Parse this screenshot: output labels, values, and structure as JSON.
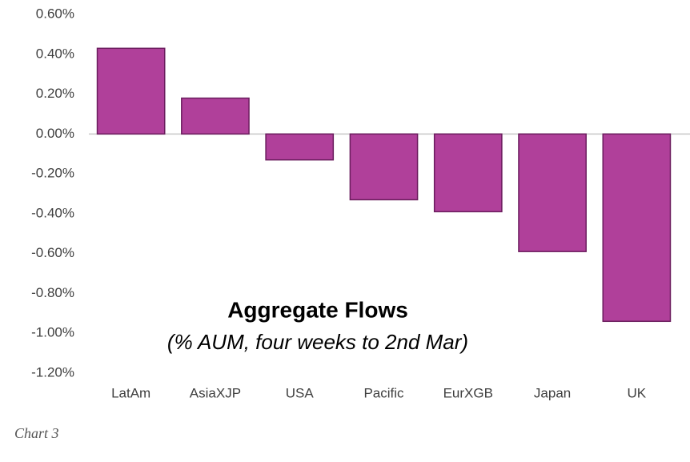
{
  "chart_data": {
    "type": "bar",
    "title": "Aggregate Flows",
    "subtitle": "(% AUM, four weeks to 2nd Mar)",
    "caption": "Chart 3",
    "categories": [
      "LatAm",
      "AsiaXJP",
      "USA",
      "Pacific",
      "EurXGB",
      "Japan",
      "UK"
    ],
    "values": [
      0.43,
      0.18,
      -0.13,
      -0.33,
      -0.39,
      -0.59,
      -0.94
    ],
    "color": "#b0409a",
    "ylim": [
      -1.2,
      0.6
    ],
    "yticks": [
      {
        "value": 0.6,
        "label": "0.60%"
      },
      {
        "value": 0.4,
        "label": "0.40%"
      },
      {
        "value": 0.2,
        "label": "0.20%"
      },
      {
        "value": 0,
        "label": "0.00%"
      },
      {
        "value": -0.2,
        "label": "-0.20%"
      },
      {
        "value": -0.4,
        "label": "-0.40%"
      },
      {
        "value": -0.6,
        "label": "-0.60%"
      },
      {
        "value": -0.8,
        "label": "-0.80%"
      },
      {
        "value": -1.0,
        "label": "-1.00%"
      },
      {
        "value": -1.2,
        "label": "-1.20%"
      }
    ],
    "grid": false
  }
}
